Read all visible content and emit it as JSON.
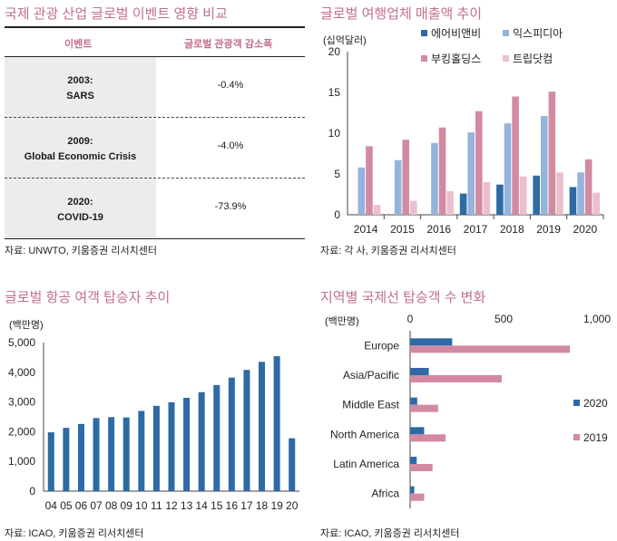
{
  "panels": {
    "p1": {
      "title": "국제 관광 산업 글로벌 이벤트 영향 비교",
      "col_event": "이벤트",
      "col_change": "글로벌 관광객 감소폭",
      "rows": [
        {
          "year": "2003:",
          "name": "SARS",
          "value": "-0.4%"
        },
        {
          "year": "2009:",
          "name": "Global Economic Crisis",
          "value": "-4.0%"
        },
        {
          "year": "2020:",
          "name": "COVID-19",
          "value": "-73.9%"
        }
      ],
      "source": "자료: UNWTO, 키움증권 리서치센터"
    },
    "p2": {
      "title": "글로벌 여행업체 매출액 추이",
      "unit": "(십억달러)",
      "source": "자료: 각 사, 키움증권 리서치센터"
    },
    "p3": {
      "title": "글로벌 항공 여객 탑승자 추이",
      "unit": "(백만명)",
      "source": "자료: ICAO, 키움증권 리서치센터"
    },
    "p4": {
      "title": "지역별 국제선 탑승객 수 변화",
      "unit": "(백만명)",
      "source": "자료: ICAO, 키움증권 리서치센터"
    }
  },
  "colors": {
    "navy": "#2e6aa3",
    "lightblue": "#94b4db",
    "pink": "#d28aa2",
    "lightpink": "#ecbfcd",
    "title": "#c2708a"
  },
  "chart_data": [
    {
      "type": "bar",
      "title": "글로벌 여행업체 매출액 추이",
      "ylabel": "(십억달러)",
      "categories": [
        "2014",
        "2015",
        "2016",
        "2017",
        "2018",
        "2019",
        "2020"
      ],
      "yticks": [
        "0",
        "5",
        "10",
        "15",
        "20"
      ],
      "ylim": [
        0,
        20
      ],
      "legend_position": "top",
      "series": [
        {
          "name": "에어비앤비",
          "color": "#2e6aa3",
          "values": [
            null,
            null,
            null,
            2.6,
            3.7,
            4.8,
            3.4
          ]
        },
        {
          "name": "익스피디아",
          "color": "#94b4db",
          "values": [
            5.8,
            6.7,
            8.8,
            10.1,
            11.2,
            12.1,
            5.2
          ]
        },
        {
          "name": "부킹홀딩스",
          "color": "#d28aa2",
          "values": [
            8.4,
            9.2,
            10.7,
            12.7,
            14.5,
            15.1,
            6.8
          ]
        },
        {
          "name": "트립닷컴",
          "color": "#ecbfcd",
          "values": [
            1.2,
            1.7,
            2.9,
            4.0,
            4.7,
            5.2,
            2.7
          ]
        }
      ]
    },
    {
      "type": "bar",
      "title": "글로벌 항공 여객 탑승자 추이",
      "ylabel": "(백만명)",
      "categories": [
        "04",
        "05",
        "06",
        "07",
        "08",
        "09",
        "10",
        "11",
        "12",
        "13",
        "14",
        "15",
        "16",
        "17",
        "18",
        "19",
        "20"
      ],
      "yticks": [
        "0",
        "1,000",
        "2,000",
        "3,000",
        "4,000",
        "5,000"
      ],
      "ylim": [
        0,
        5000
      ],
      "series": [
        {
          "color": "#2e6aa3",
          "values": [
            1980,
            2130,
            2260,
            2460,
            2490,
            2480,
            2700,
            2870,
            2990,
            3140,
            3330,
            3570,
            3820,
            4080,
            4350,
            4540,
            1780
          ]
        }
      ]
    },
    {
      "type": "bar",
      "orientation": "horizontal",
      "title": "지역별 국제선 탑승객 수 변화",
      "xlabel": "(백만명)",
      "categories": [
        "Europe",
        "Asia/Pacific",
        "Middle East",
        "North America",
        "Latin America",
        "Africa"
      ],
      "xticks": [
        "0",
        "500",
        "1,000"
      ],
      "xlim": [
        0,
        1000
      ],
      "legend_position": "right",
      "series": [
        {
          "name": "2020",
          "color": "#2e6aa3",
          "values": [
            225,
            100,
            38,
            75,
            35,
            22
          ]
        },
        {
          "name": "2019",
          "color": "#d28aa2",
          "values": [
            855,
            490,
            150,
            190,
            120,
            75
          ]
        }
      ]
    }
  ]
}
